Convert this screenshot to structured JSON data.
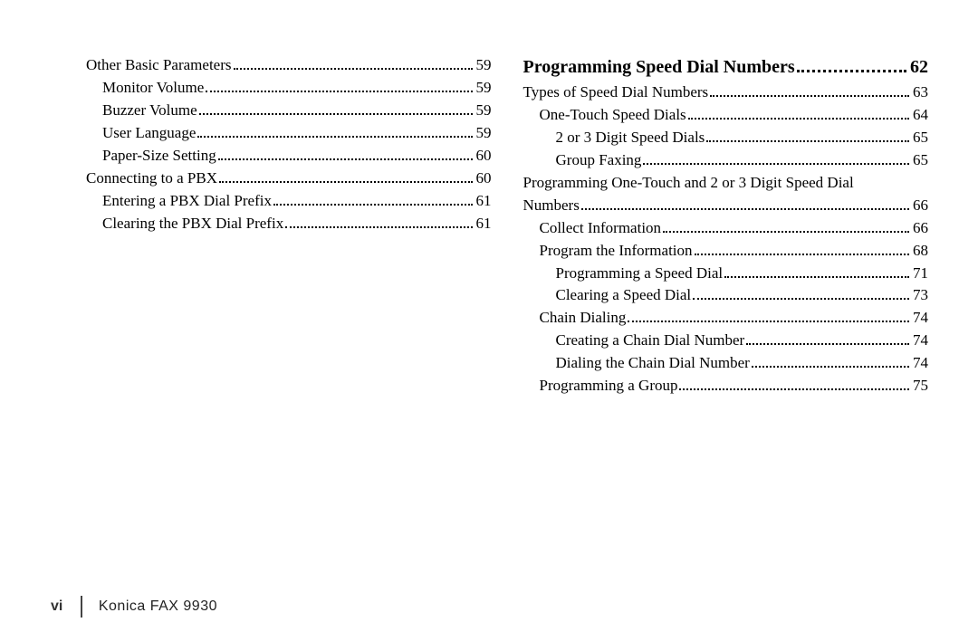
{
  "left": {
    "e1": {
      "label": "Other Basic Parameters",
      "page": "59"
    },
    "e2": {
      "label": "Monitor Volume",
      "page": "59"
    },
    "e3": {
      "label": "Buzzer Volume",
      "page": "59"
    },
    "e4": {
      "label": "User Language",
      "page": "59"
    },
    "e5": {
      "label": "Paper-Size Setting",
      "page": "60"
    },
    "e6": {
      "label": "Connecting to a PBX",
      "page": "60"
    },
    "e7": {
      "label": "Entering a PBX Dial Prefix",
      "page": "61"
    },
    "e8": {
      "label": "Clearing the PBX Dial Prefix",
      "page": "61"
    }
  },
  "right": {
    "heading": {
      "label": "Programming Speed Dial Numbers",
      "page": "62"
    },
    "e1": {
      "label": "Types of Speed Dial Numbers",
      "page": "63"
    },
    "e2": {
      "label": "One-Touch Speed Dials",
      "page": "64"
    },
    "e3": {
      "label": "2 or 3 Digit Speed Dials",
      "page": "65"
    },
    "e4": {
      "label": "Group Faxing",
      "page": "65"
    },
    "e5w": {
      "label1": "Programming One-Touch and 2 or 3 Digit Speed Dial",
      "label2": "Numbers",
      "page": "66"
    },
    "e6": {
      "label": "Collect Information",
      "page": "66"
    },
    "e7": {
      "label": "Program the Information",
      "page": "68"
    },
    "e8": {
      "label": "Programming  a Speed Dial",
      "page": "71"
    },
    "e9": {
      "label": "Clearing a Speed Dial",
      "page": "73"
    },
    "e10": {
      "label": "Chain Dialing",
      "page": "74"
    },
    "e11": {
      "label": "Creating a Chain Dial Number",
      "page": "74"
    },
    "e12": {
      "label": "Dialing the Chain Dial Number",
      "page": "74"
    },
    "e13": {
      "label": "Programming a Group",
      "page": "75"
    }
  },
  "footer": {
    "page": "vi",
    "model": "Konica FAX 9930"
  }
}
